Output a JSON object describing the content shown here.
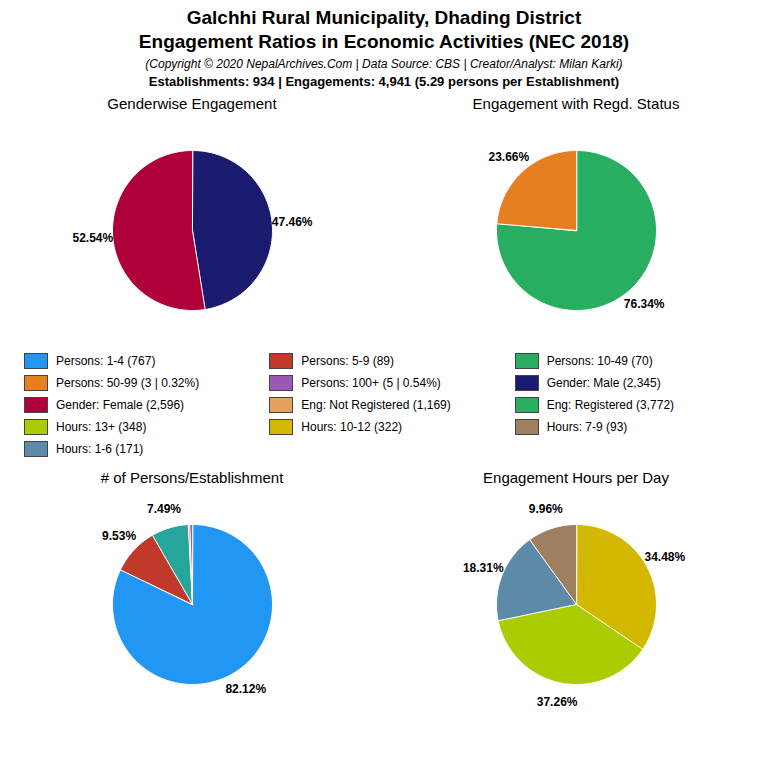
{
  "title": [
    "Galchhi Rural Municipality, Dhading District",
    "Engagement Ratios in Economic Activities (NEC 2018)"
  ],
  "subtitle": [
    "(Copyright © 2020 NepalArchives.Com | Data Source: CBS | Creator/Analyst: Milan Karki)",
    "Establishments: 934 | Engagements: 4,941 (5.29 persons per Establishment)"
  ],
  "legend_items": [
    {
      "name": "Persons: 1-4 (767)",
      "color": "#2196f3"
    },
    {
      "name": "Persons: 5-9 (89)",
      "color": "#c0392b"
    },
    {
      "name": "Persons: 10-49 (70)",
      "color": "#27ae60"
    },
    {
      "name": "Persons: 50-99 (3 | 0.32%)",
      "color": "#e67e22"
    },
    {
      "name": "Persons: 100+ (5 | 0.54%)",
      "color": "#9b59b6"
    },
    {
      "name": "Gender: Male (2,345)",
      "color": "#1a1a6e"
    },
    {
      "name": "Gender: Female (2,596)",
      "color": "#b0003a"
    },
    {
      "name": "Eng: Not Registered (1,169)",
      "color": "#e8a060"
    },
    {
      "name": "Eng: Registered (3,772)",
      "color": "#27ae60"
    },
    {
      "name": "Hours: 13+ (348)",
      "color": "#aacc00"
    },
    {
      "name": "Hours: 10-12 (322)",
      "color": "#d4b800"
    },
    {
      "name": "Hours: 7-9 (93)",
      "color": "#9e8060"
    },
    {
      "name": "Hours: 1-6 (171)",
      "color": "#5d8aa8"
    }
  ],
  "chart_data": [
    {
      "type": "pie",
      "title": "Genderwise Engagement",
      "values": [
        47.46,
        52.54
      ],
      "value_labels": [
        "47.46%",
        "52.54%"
      ],
      "colors": [
        "#1a1a6e",
        "#b0003a"
      ],
      "data_labels": true
    },
    {
      "type": "pie",
      "title": "Engagement with Regd. Status",
      "values": [
        76.34,
        23.66
      ],
      "value_labels": [
        "76.34%",
        "23.66%"
      ],
      "colors": [
        "#27ae60",
        "#e67e22"
      ],
      "data_labels": true
    },
    {
      "type": "pie",
      "title": "# of Persons/Establishment",
      "values": [
        82.12,
        9.53,
        7.49,
        0.32,
        0.54
      ],
      "value_labels": [
        "82.12%",
        "9.53%",
        "7.49%",
        null,
        null
      ],
      "colors": [
        "#2196f3",
        "#c0392b",
        "#26a69a",
        "#e67e22",
        "#9b59b6"
      ],
      "data_labels": true
    },
    {
      "type": "pie",
      "title": "Engagement Hours per Day",
      "values": [
        34.48,
        37.26,
        18.31,
        9.96
      ],
      "value_labels": [
        "34.48%",
        "37.26%",
        "18.31%",
        "9.96%"
      ],
      "colors": [
        "#d4b800",
        "#aacc00",
        "#5d8aa8",
        "#9e8060"
      ],
      "data_labels": true
    }
  ]
}
